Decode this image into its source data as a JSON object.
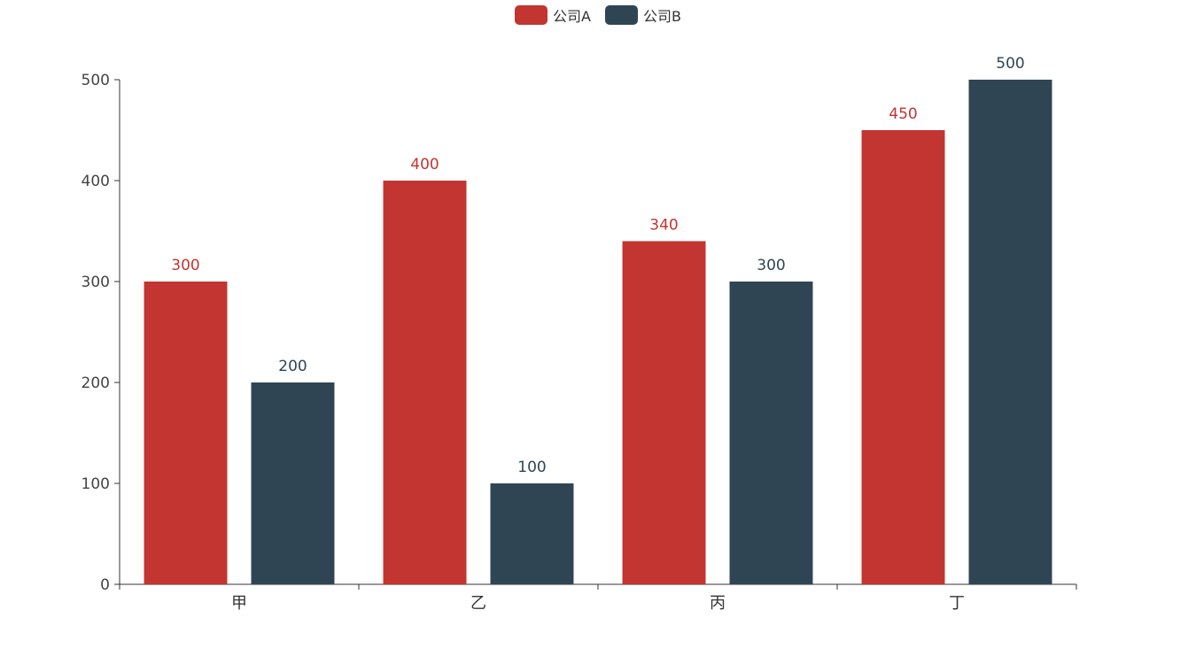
{
  "chart_data": {
    "type": "bar",
    "categories": [
      "甲",
      "乙",
      "丙",
      "丁"
    ],
    "series": [
      {
        "name": "公司A",
        "color": "#c23531",
        "values": [
          300,
          400,
          340,
          450
        ]
      },
      {
        "name": "公司B",
        "color": "#2f4554",
        "values": [
          200,
          100,
          300,
          500
        ]
      }
    ],
    "ylim": [
      0,
      500
    ],
    "yticks": [
      0,
      100,
      200,
      300,
      400,
      500
    ],
    "legend_position": "top-center",
    "grid": false,
    "data_labels": true
  }
}
